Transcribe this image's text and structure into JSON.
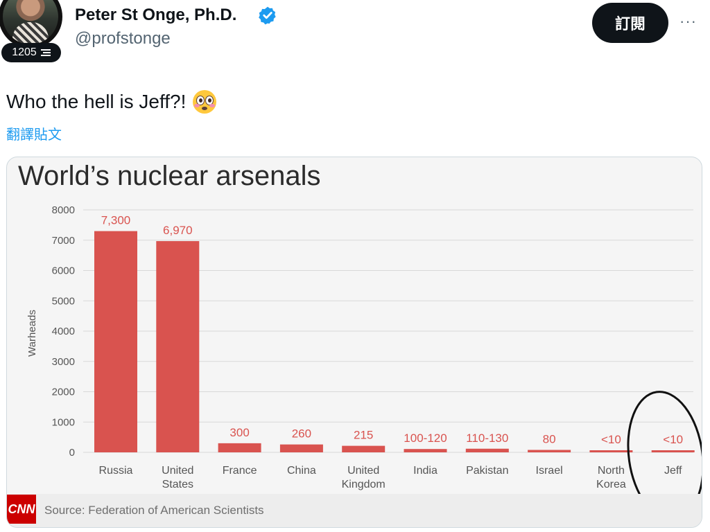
{
  "header": {
    "badge_count": "1205",
    "name": "Peter St Onge, Ph.D.",
    "handle": "@profstonge",
    "subscribe_label": "訂閱",
    "more_label": "···"
  },
  "tweet": {
    "text": "Who the hell is Jeff?!",
    "emoji_icon": "flushed-face-emoji",
    "translate_label": "翻譯貼文"
  },
  "image": {
    "logo_text": "CNN",
    "source": "Source: Federation of American Scientists"
  },
  "chart_data": {
    "type": "bar",
    "title": "World’s nuclear arsenals",
    "ylabel": "Warheads",
    "xlabel": "",
    "ylim": [
      0,
      8000
    ],
    "yticks": [
      "8000",
      "7000",
      "6000",
      "5000",
      "4000",
      "3000",
      "2000",
      "1000",
      "0"
    ],
    "grid": true,
    "categories": [
      [
        "Russia"
      ],
      [
        "United",
        "States"
      ],
      [
        "France"
      ],
      [
        "China"
      ],
      [
        "United",
        "Kingdom"
      ],
      [
        "India"
      ],
      [
        "Pakistan"
      ],
      [
        "Israel"
      ],
      [
        "North",
        "Korea"
      ],
      [
        "Jeff"
      ]
    ],
    "values": [
      7300,
      6970,
      300,
      260,
      215,
      110,
      120,
      80,
      10,
      10
    ],
    "value_labels": [
      "7,300",
      "6,970",
      "300",
      "260",
      "215",
      "100-120",
      "110-130",
      "80",
      "<10",
      "<10"
    ],
    "bar_color": "#d9534f",
    "label_color": "#d9534f",
    "annotation": "hand-drawn circle around Jeff"
  }
}
